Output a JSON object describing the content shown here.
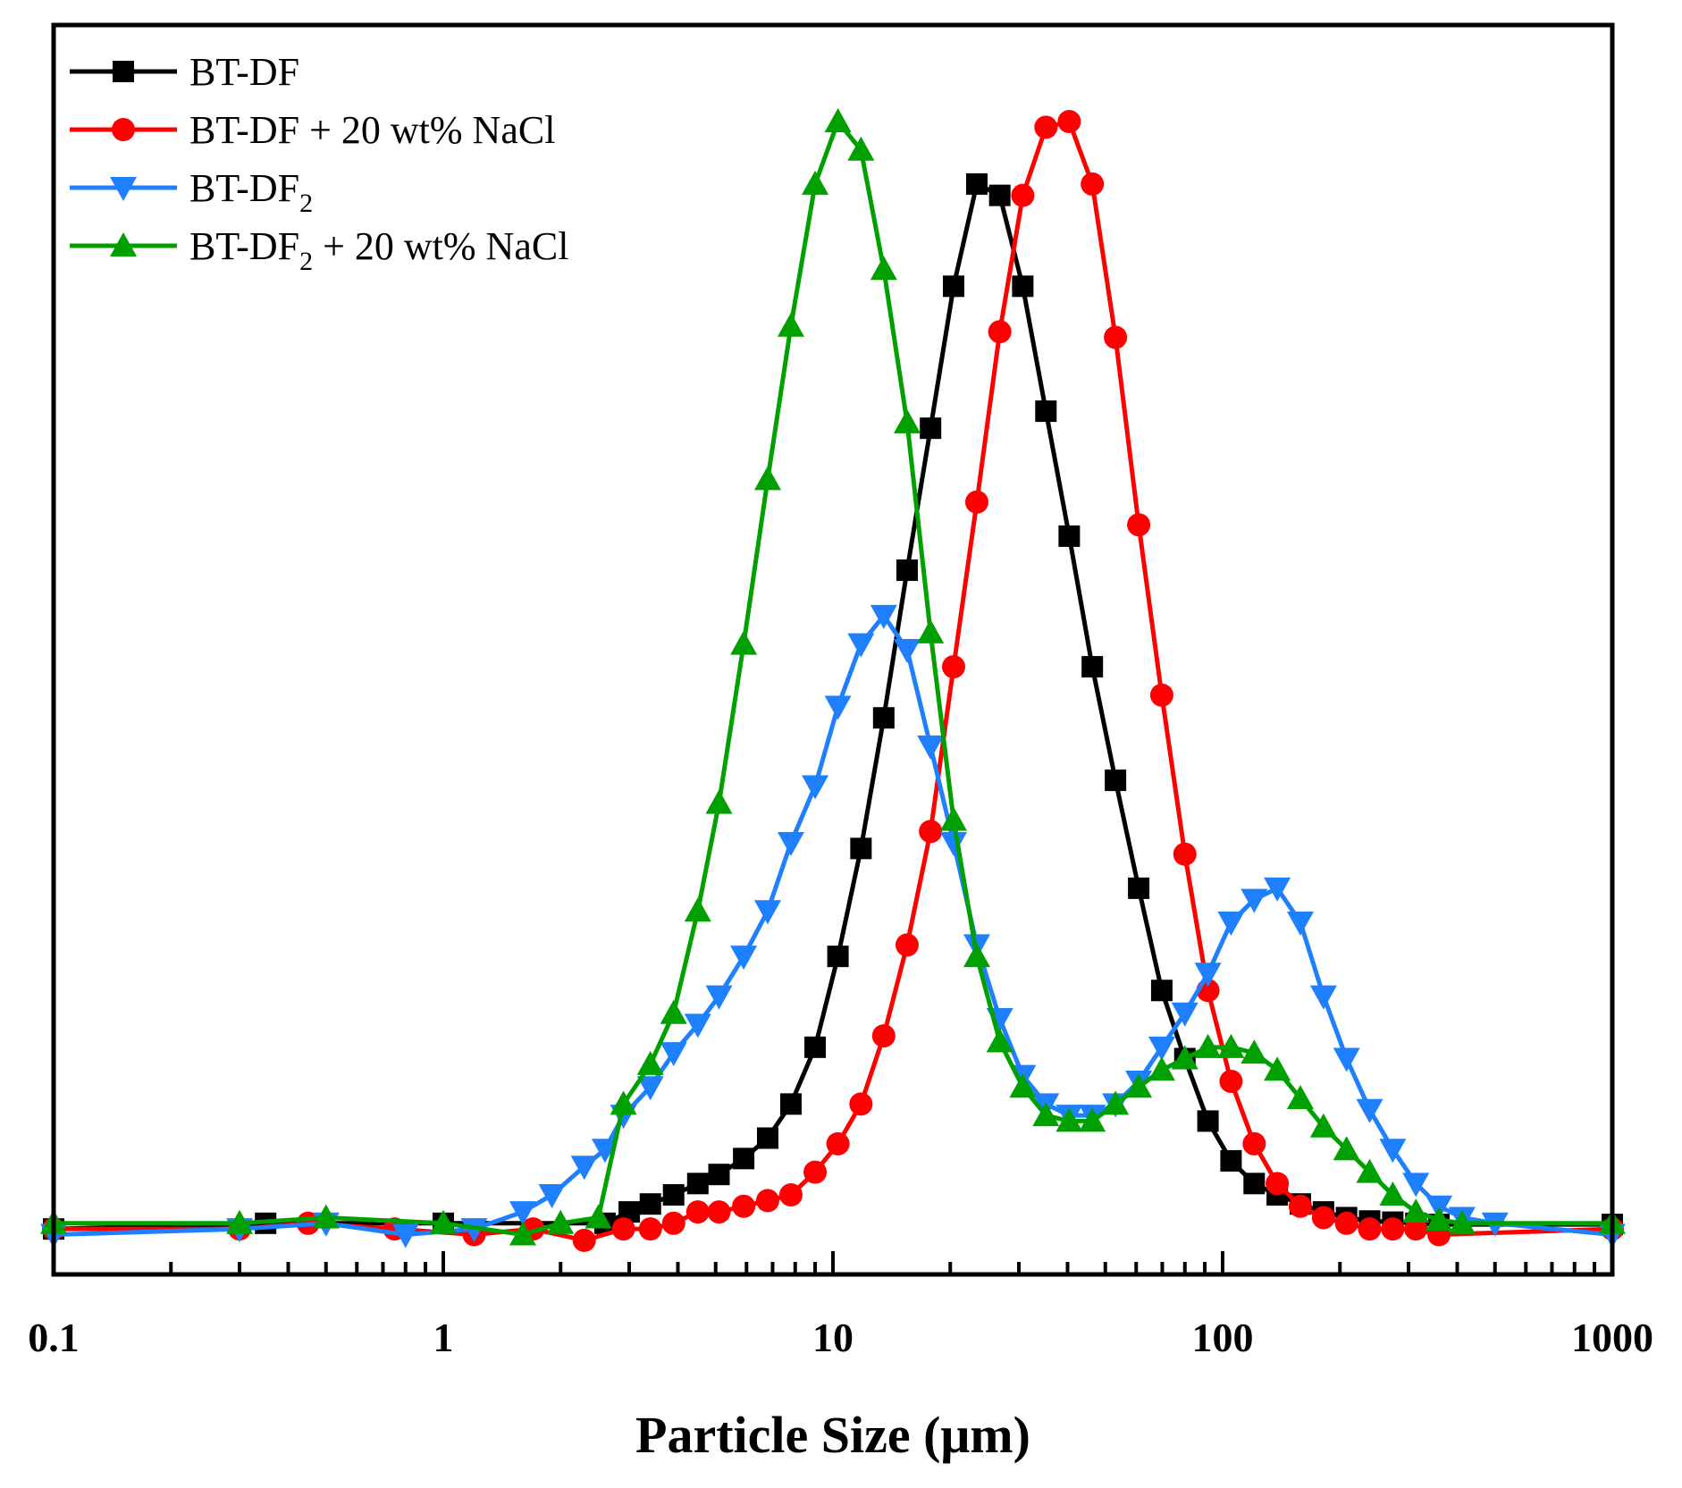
{
  "chart_data": {
    "type": "line",
    "title": "",
    "xlabel": "Particle Size (μm)",
    "ylabel": "",
    "xscale": "log",
    "xlim": [
      0.1,
      1000
    ],
    "ylim": [
      -0.4,
      10.6
    ],
    "xticks": [
      {
        "value": 0.1,
        "label": "0.1"
      },
      {
        "value": 1,
        "label": "1"
      },
      {
        "value": 10,
        "label": "10"
      },
      {
        "value": 100,
        "label": "100"
      },
      {
        "value": 1000,
        "label": "1000"
      }
    ],
    "legend_position": "top-left",
    "series": [
      {
        "name": "BT-DF",
        "label_main": "BT-DF",
        "label_sub": "",
        "label_tail": "",
        "color": "#000000",
        "marker": "square",
        "points": [
          [
            0.1,
            0
          ],
          [
            0.35,
            0.05
          ],
          [
            1,
            0.05
          ],
          [
            2.6,
            0.05
          ],
          [
            3,
            0.15
          ],
          [
            3.4,
            0.22
          ],
          [
            3.9,
            0.3
          ],
          [
            4.5,
            0.4
          ],
          [
            5.1,
            0.48
          ],
          [
            5.9,
            0.62
          ],
          [
            6.8,
            0.8
          ],
          [
            7.8,
            1.1
          ],
          [
            9,
            1.6
          ],
          [
            10.3,
            2.4
          ],
          [
            11.8,
            3.35
          ],
          [
            13.5,
            4.5
          ],
          [
            15.5,
            5.8
          ],
          [
            17.8,
            7.05
          ],
          [
            20.4,
            8.3
          ],
          [
            23.4,
            9.2
          ],
          [
            26.8,
            9.1
          ],
          [
            30.7,
            8.3
          ],
          [
            35.2,
            7.2
          ],
          [
            40.4,
            6.1
          ],
          [
            46.3,
            4.95
          ],
          [
            53.1,
            3.95
          ],
          [
            60.9,
            3
          ],
          [
            69.8,
            2.1
          ],
          [
            80,
            1.5
          ],
          [
            91.7,
            0.95
          ],
          [
            105.1,
            0.6
          ],
          [
            120.5,
            0.4
          ],
          [
            138.1,
            0.3
          ],
          [
            158.3,
            0.22
          ],
          [
            181.5,
            0.15
          ],
          [
            208,
            0.1
          ],
          [
            238.4,
            0.07
          ],
          [
            273.3,
            0.06
          ],
          [
            313.3,
            0.05
          ],
          [
            359.1,
            0.04
          ],
          [
            1000,
            0.04
          ]
        ]
      },
      {
        "name": "BT-DF + 20 wt% NaCl",
        "label_main": "BT-DF + 20 wt% NaCl",
        "label_sub": "",
        "label_tail": "",
        "color": "#ff0000",
        "marker": "circle",
        "points": [
          [
            0.1,
            0
          ],
          [
            0.3,
            0
          ],
          [
            0.45,
            0.05
          ],
          [
            0.75,
            0
          ],
          [
            1.2,
            -0.05
          ],
          [
            1.7,
            0
          ],
          [
            2.3,
            -0.1
          ],
          [
            2.9,
            0
          ],
          [
            3.4,
            0
          ],
          [
            3.9,
            0.05
          ],
          [
            4.5,
            0.15
          ],
          [
            5.1,
            0.15
          ],
          [
            5.9,
            0.2
          ],
          [
            6.8,
            0.25
          ],
          [
            7.8,
            0.3
          ],
          [
            9,
            0.5
          ],
          [
            10.3,
            0.75
          ],
          [
            11.8,
            1.1
          ],
          [
            13.5,
            1.7
          ],
          [
            15.5,
            2.5
          ],
          [
            17.8,
            3.5
          ],
          [
            20.4,
            4.95
          ],
          [
            23.4,
            6.4
          ],
          [
            26.8,
            7.9
          ],
          [
            30.7,
            9.1
          ],
          [
            35.2,
            9.7
          ],
          [
            40.4,
            9.75
          ],
          [
            46.3,
            9.2
          ],
          [
            53.1,
            7.85
          ],
          [
            60.9,
            6.2
          ],
          [
            69.8,
            4.7
          ],
          [
            80,
            3.3
          ],
          [
            91.7,
            2.1
          ],
          [
            105.1,
            1.3
          ],
          [
            120.5,
            0.75
          ],
          [
            138.1,
            0.4
          ],
          [
            158.3,
            0.2
          ],
          [
            181.5,
            0.1
          ],
          [
            208,
            0.05
          ],
          [
            238.4,
            0
          ],
          [
            273.3,
            0
          ],
          [
            313.3,
            0
          ],
          [
            359.1,
            -0.05
          ],
          [
            1000,
            0
          ]
        ]
      },
      {
        "name": "BT-DF2",
        "label_main": "BT-DF",
        "label_sub": "2",
        "label_tail": "",
        "color": "#1e7fff",
        "marker": "triangle-down",
        "points": [
          [
            0.1,
            -0.05
          ],
          [
            0.3,
            0
          ],
          [
            0.5,
            0.05
          ],
          [
            0.8,
            -0.05
          ],
          [
            1.2,
            0
          ],
          [
            1.6,
            0.15
          ],
          [
            1.9,
            0.3
          ],
          [
            2.3,
            0.55
          ],
          [
            2.6,
            0.7
          ],
          [
            2.9,
            1
          ],
          [
            3.4,
            1.25
          ],
          [
            3.9,
            1.55
          ],
          [
            4.5,
            1.8
          ],
          [
            5.1,
            2.05
          ],
          [
            5.9,
            2.4
          ],
          [
            6.8,
            2.8
          ],
          [
            7.8,
            3.4
          ],
          [
            9,
            3.9
          ],
          [
            10.3,
            4.6
          ],
          [
            11.8,
            5.15
          ],
          [
            13.5,
            5.4
          ],
          [
            15.5,
            5.1
          ],
          [
            17.8,
            4.25
          ],
          [
            20.4,
            3.4
          ],
          [
            23.4,
            2.5
          ],
          [
            26.8,
            1.85
          ],
          [
            30.7,
            1.35
          ],
          [
            35.2,
            1.1
          ],
          [
            40.4,
            1.0
          ],
          [
            46.3,
            1.0
          ],
          [
            53.1,
            1.1
          ],
          [
            60.9,
            1.3
          ],
          [
            69.8,
            1.6
          ],
          [
            80,
            1.9
          ],
          [
            91.7,
            2.25
          ],
          [
            105.1,
            2.7
          ],
          [
            120.5,
            2.9
          ],
          [
            138.1,
            3
          ],
          [
            158.3,
            2.7
          ],
          [
            181.5,
            2.05
          ],
          [
            208,
            1.5
          ],
          [
            238.4,
            1.05
          ],
          [
            273.3,
            0.7
          ],
          [
            313.3,
            0.4
          ],
          [
            359.1,
            0.2
          ],
          [
            411.6,
            0.1
          ],
          [
            500,
            0.05
          ],
          [
            1000,
            -0.05
          ]
        ]
      },
      {
        "name": "BT-DF2 + 20 wt% NaCl",
        "label_main": "BT-DF",
        "label_sub": "2",
        "label_tail": " + 20 wt% NaCl",
        "color": "#00a000",
        "marker": "triangle-up",
        "points": [
          [
            0.1,
            0.05
          ],
          [
            0.3,
            0.05
          ],
          [
            0.5,
            0.1
          ],
          [
            1,
            0.05
          ],
          [
            1.6,
            -0.05
          ],
          [
            2,
            0.05
          ],
          [
            2.5,
            0.1
          ],
          [
            2.9,
            1.1
          ],
          [
            3.4,
            1.45
          ],
          [
            3.9,
            1.9
          ],
          [
            4.5,
            2.8
          ],
          [
            5.1,
            3.75
          ],
          [
            5.9,
            5.15
          ],
          [
            6.8,
            6.6
          ],
          [
            7.8,
            7.95
          ],
          [
            9,
            9.2
          ],
          [
            10.3,
            9.75
          ],
          [
            11.8,
            9.5
          ],
          [
            13.5,
            8.45
          ],
          [
            15.5,
            7.1
          ],
          [
            17.8,
            5.25
          ],
          [
            20.4,
            3.6
          ],
          [
            23.4,
            2.4
          ],
          [
            26.8,
            1.65
          ],
          [
            30.7,
            1.25
          ],
          [
            35.2,
            1.0
          ],
          [
            40.4,
            0.95
          ],
          [
            46.3,
            0.95
          ],
          [
            53.1,
            1.1
          ],
          [
            60.9,
            1.25
          ],
          [
            69.8,
            1.4
          ],
          [
            80,
            1.5
          ],
          [
            91.7,
            1.6
          ],
          [
            105.1,
            1.6
          ],
          [
            120.5,
            1.55
          ],
          [
            138.1,
            1.4
          ],
          [
            158.3,
            1.15
          ],
          [
            181.5,
            0.9
          ],
          [
            208,
            0.7
          ],
          [
            238.4,
            0.5
          ],
          [
            273.3,
            0.3
          ],
          [
            313.3,
            0.15
          ],
          [
            359.1,
            0.08
          ],
          [
            411.6,
            0.05
          ],
          [
            1000,
            0.05
          ]
        ]
      }
    ]
  }
}
